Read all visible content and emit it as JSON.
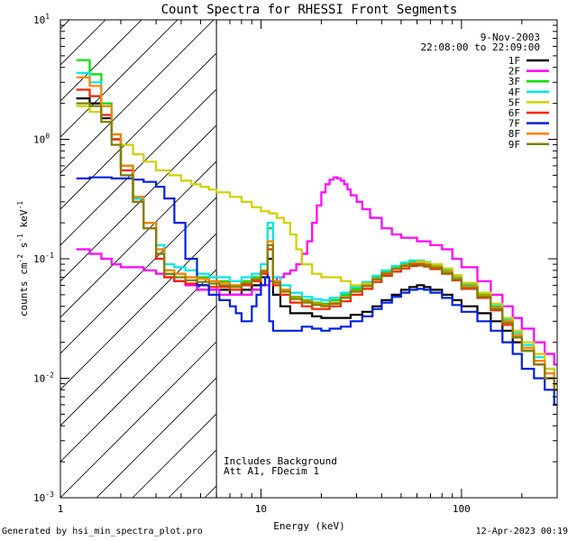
{
  "chart_data": {
    "type": "line",
    "title": "Count Spectra for RHESSI Front Segments",
    "xlabel": "Energy (keV)",
    "ylabel": "counts cm-2 s-1 keV-1",
    "xscale": "log",
    "yscale": "log",
    "xlim": [
      1.0,
      300.0
    ],
    "ylim": [
      0.001,
      10.0
    ],
    "x_tick_labels": [
      {
        "value": 1,
        "label": "1"
      },
      {
        "value": 10,
        "label": "10"
      },
      {
        "value": 100,
        "label": "100"
      }
    ],
    "y_tick_labels": [
      {
        "value": 0.001,
        "base": "10",
        "exp": "-3"
      },
      {
        "value": 0.01,
        "base": "10",
        "exp": "-2"
      },
      {
        "value": 0.1,
        "base": "10",
        "exp": "-1"
      },
      {
        "value": 1,
        "base": "10",
        "exp": "0"
      },
      {
        "value": 10,
        "base": "10",
        "exp": "1"
      }
    ],
    "date": "9-Nov-2003",
    "time_range": "22:08:00 to 22:09:00",
    "annotations": [
      "Includes Background",
      "Att A1, FDecim 1"
    ],
    "excluded_region": {
      "x_min": 1.0,
      "x_max": 6.0,
      "style": "hatched"
    },
    "series": [
      {
        "name": "1F",
        "color": "#000000",
        "x": [
          1.2,
          1.4,
          1.6,
          1.8,
          2.0,
          2.3,
          2.6,
          3.0,
          3.3,
          3.7,
          4.2,
          4.8,
          5.5,
          6.2,
          7.0,
          8.0,
          9.0,
          10.0,
          10.8,
          11.5,
          12.5,
          14,
          16,
          18,
          20,
          22,
          25,
          28,
          32,
          36,
          40,
          45,
          50,
          55,
          60,
          65,
          70,
          80,
          90,
          100,
          120,
          140,
          160,
          180,
          200,
          230,
          260,
          290
        ],
        "y": [
          2.2,
          2.0,
          1.5,
          1.0,
          0.6,
          0.32,
          0.2,
          0.11,
          0.075,
          0.065,
          0.06,
          0.06,
          0.055,
          0.055,
          0.05,
          0.055,
          0.06,
          0.07,
          0.1,
          0.05,
          0.04,
          0.035,
          0.035,
          0.033,
          0.032,
          0.032,
          0.032,
          0.034,
          0.036,
          0.04,
          0.045,
          0.05,
          0.055,
          0.058,
          0.06,
          0.058,
          0.055,
          0.05,
          0.045,
          0.04,
          0.035,
          0.03,
          0.025,
          0.02,
          0.017,
          0.013,
          0.01,
          0.008
        ]
      },
      {
        "name": "2F",
        "color": "#ff00ff",
        "x": [
          1.2,
          1.4,
          1.6,
          1.8,
          2.0,
          2.3,
          2.6,
          3.0,
          3.3,
          3.7,
          4.2,
          4.8,
          5.5,
          6.2,
          7.0,
          8.0,
          9.0,
          10.0,
          11.0,
          12.0,
          13.0,
          14,
          15,
          16,
          17,
          18,
          19,
          20,
          21,
          22,
          23,
          24,
          25,
          26,
          27,
          28,
          30,
          32,
          35,
          40,
          45,
          50,
          60,
          70,
          80,
          90,
          100,
          120,
          140,
          160,
          180,
          200,
          230,
          260,
          290
        ],
        "y": [
          0.12,
          0.11,
          0.1,
          0.09,
          0.085,
          0.085,
          0.08,
          0.075,
          0.07,
          0.065,
          0.06,
          0.055,
          0.055,
          0.05,
          0.05,
          0.05,
          0.055,
          0.06,
          0.065,
          0.07,
          0.075,
          0.08,
          0.09,
          0.11,
          0.14,
          0.2,
          0.28,
          0.36,
          0.42,
          0.46,
          0.48,
          0.47,
          0.45,
          0.42,
          0.38,
          0.34,
          0.3,
          0.26,
          0.22,
          0.18,
          0.16,
          0.15,
          0.14,
          0.13,
          0.12,
          0.1,
          0.085,
          0.065,
          0.05,
          0.04,
          0.032,
          0.026,
          0.02,
          0.016,
          0.013
        ]
      },
      {
        "name": "3F",
        "color": "#00e000",
        "x": [
          1.2,
          1.4,
          1.6,
          1.8,
          2.0,
          2.3,
          2.6,
          3.0,
          3.3,
          3.7,
          4.2,
          4.8,
          5.5,
          6.2,
          7.0,
          8.0,
          9.0,
          10.0,
          10.8,
          11.5,
          12.5,
          14,
          16,
          18,
          20,
          22,
          25,
          28,
          32,
          36,
          40,
          45,
          50,
          55,
          60,
          65,
          70,
          80,
          90,
          100,
          120,
          140,
          160,
          180,
          200,
          230,
          260,
          290
        ],
        "y": [
          4.6,
          3.5,
          2.0,
          1.1,
          0.6,
          0.33,
          0.2,
          0.12,
          0.08,
          0.075,
          0.07,
          0.07,
          0.065,
          0.065,
          0.06,
          0.065,
          0.07,
          0.08,
          0.18,
          0.065,
          0.055,
          0.048,
          0.045,
          0.043,
          0.042,
          0.045,
          0.05,
          0.056,
          0.062,
          0.07,
          0.078,
          0.085,
          0.09,
          0.095,
          0.095,
          0.092,
          0.088,
          0.08,
          0.07,
          0.06,
          0.05,
          0.04,
          0.03,
          0.023,
          0.018,
          0.014,
          0.011,
          0.009
        ]
      },
      {
        "name": "4F",
        "color": "#00e8e8",
        "x": [
          1.2,
          1.4,
          1.6,
          1.8,
          2.0,
          2.3,
          2.6,
          3.0,
          3.3,
          3.7,
          4.2,
          4.8,
          5.5,
          6.2,
          7.0,
          8.0,
          9.0,
          10.0,
          10.8,
          11.5,
          12.5,
          14,
          16,
          18,
          20,
          22,
          25,
          28,
          32,
          36,
          40,
          45,
          50,
          55,
          60,
          65,
          70,
          80,
          90,
          100,
          120,
          140,
          160,
          180,
          200,
          230,
          260,
          290
        ],
        "y": [
          3.6,
          3.0,
          1.9,
          1.0,
          0.6,
          0.32,
          0.2,
          0.13,
          0.09,
          0.085,
          0.08,
          0.075,
          0.07,
          0.07,
          0.065,
          0.07,
          0.075,
          0.09,
          0.2,
          0.07,
          0.06,
          0.052,
          0.048,
          0.046,
          0.045,
          0.047,
          0.052,
          0.058,
          0.064,
          0.072,
          0.08,
          0.087,
          0.093,
          0.097,
          0.097,
          0.094,
          0.09,
          0.082,
          0.072,
          0.062,
          0.052,
          0.041,
          0.031,
          0.024,
          0.019,
          0.015,
          0.012,
          0.009
        ]
      },
      {
        "name": "5F",
        "color": "#d0d000",
        "x": [
          1.2,
          1.4,
          1.6,
          1.8,
          2.0,
          2.3,
          2.6,
          3.0,
          3.5,
          4.0,
          4.5,
          5.0,
          5.5,
          6.0,
          7.0,
          8.0,
          9.0,
          10.0,
          11.0,
          12.0,
          13.0,
          14,
          15,
          16,
          18,
          20,
          22,
          25,
          28,
          32,
          36,
          40,
          45,
          50,
          55,
          60,
          65,
          70,
          80,
          90,
          100,
          120,
          140,
          160,
          180,
          200,
          230,
          260,
          290
        ],
        "y": [
          1.9,
          1.7,
          1.4,
          1.1,
          0.9,
          0.75,
          0.65,
          0.55,
          0.5,
          0.45,
          0.42,
          0.4,
          0.38,
          0.36,
          0.33,
          0.3,
          0.27,
          0.25,
          0.24,
          0.22,
          0.2,
          0.16,
          0.12,
          0.09,
          0.075,
          0.07,
          0.07,
          0.065,
          0.06,
          0.062,
          0.068,
          0.075,
          0.082,
          0.088,
          0.092,
          0.095,
          0.093,
          0.09,
          0.083,
          0.073,
          0.063,
          0.052,
          0.042,
          0.032,
          0.025,
          0.02,
          0.016,
          0.012,
          0.009
        ]
      },
      {
        "name": "6F",
        "color": "#ff2000",
        "x": [
          1.2,
          1.4,
          1.6,
          1.8,
          2.0,
          2.3,
          2.6,
          3.0,
          3.3,
          3.7,
          4.2,
          4.8,
          5.5,
          6.2,
          7.0,
          8.0,
          9.0,
          10.0,
          10.8,
          11.5,
          12.5,
          14,
          16,
          18,
          20,
          22,
          25,
          28,
          32,
          36,
          40,
          45,
          50,
          55,
          60,
          65,
          70,
          80,
          90,
          100,
          120,
          140,
          160,
          180,
          200,
          230,
          260,
          290
        ],
        "y": [
          2.6,
          2.3,
          1.6,
          1.0,
          0.55,
          0.3,
          0.18,
          0.1,
          0.07,
          0.065,
          0.062,
          0.06,
          0.058,
          0.058,
          0.055,
          0.06,
          0.065,
          0.075,
          0.12,
          0.06,
          0.05,
          0.043,
          0.04,
          0.038,
          0.038,
          0.04,
          0.044,
          0.05,
          0.056,
          0.064,
          0.072,
          0.078,
          0.083,
          0.087,
          0.088,
          0.086,
          0.082,
          0.075,
          0.066,
          0.056,
          0.047,
          0.037,
          0.028,
          0.022,
          0.017,
          0.013,
          0.01,
          0.008
        ]
      },
      {
        "name": "7F",
        "color": "#0020e0",
        "x": [
          1.2,
          1.4,
          1.6,
          1.8,
          2.0,
          2.3,
          2.6,
          3.0,
          3.3,
          3.7,
          4.2,
          4.8,
          5.5,
          6.2,
          7.0,
          7.5,
          8.0,
          8.5,
          9.0,
          9.5,
          10.0,
          10.5,
          11.0,
          11.5,
          12.0,
          13,
          14,
          16,
          18,
          20,
          22,
          25,
          28,
          32,
          36,
          40,
          45,
          50,
          55,
          60,
          65,
          70,
          80,
          90,
          100,
          120,
          140,
          160,
          180,
          200,
          230,
          260,
          290
        ],
        "y": [
          0.47,
          0.48,
          0.48,
          0.47,
          0.47,
          0.46,
          0.44,
          0.4,
          0.32,
          0.2,
          0.1,
          0.06,
          0.05,
          0.045,
          0.04,
          0.035,
          0.03,
          0.03,
          0.04,
          0.05,
          0.06,
          0.07,
          0.03,
          0.025,
          0.025,
          0.025,
          0.025,
          0.027,
          0.026,
          0.025,
          0.026,
          0.027,
          0.03,
          0.033,
          0.038,
          0.043,
          0.048,
          0.052,
          0.055,
          0.056,
          0.055,
          0.052,
          0.047,
          0.041,
          0.036,
          0.03,
          0.025,
          0.02,
          0.016,
          0.012,
          0.01,
          0.008,
          0.006
        ]
      },
      {
        "name": "8F",
        "color": "#ff8000",
        "x": [
          1.2,
          1.4,
          1.6,
          1.8,
          2.0,
          2.3,
          2.6,
          3.0,
          3.3,
          3.7,
          4.2,
          4.8,
          5.5,
          6.2,
          7.0,
          8.0,
          9.0,
          10.0,
          10.8,
          11.5,
          12.5,
          14,
          16,
          18,
          20,
          22,
          25,
          28,
          32,
          36,
          40,
          45,
          50,
          55,
          60,
          65,
          70,
          80,
          90,
          100,
          120,
          140,
          160,
          180,
          200,
          230,
          260,
          290
        ],
        "y": [
          3.3,
          2.8,
          1.9,
          1.1,
          0.6,
          0.33,
          0.2,
          0.12,
          0.08,
          0.075,
          0.07,
          0.068,
          0.065,
          0.063,
          0.06,
          0.063,
          0.068,
          0.08,
          0.14,
          0.065,
          0.055,
          0.047,
          0.044,
          0.042,
          0.041,
          0.043,
          0.048,
          0.054,
          0.06,
          0.068,
          0.076,
          0.083,
          0.088,
          0.092,
          0.092,
          0.09,
          0.086,
          0.078,
          0.069,
          0.059,
          0.049,
          0.039,
          0.03,
          0.023,
          0.018,
          0.014,
          0.011,
          0.009
        ]
      },
      {
        "name": "9F",
        "color": "#808000",
        "x": [
          1.2,
          1.4,
          1.6,
          1.8,
          2.0,
          2.3,
          2.6,
          3.0,
          3.3,
          3.7,
          4.2,
          4.8,
          5.5,
          6.2,
          7.0,
          8.0,
          9.0,
          10.0,
          10.8,
          11.5,
          12.5,
          14,
          16,
          18,
          20,
          22,
          25,
          28,
          32,
          36,
          40,
          45,
          50,
          55,
          60,
          65,
          70,
          80,
          90,
          100,
          120,
          140,
          160,
          180,
          200,
          230,
          260,
          290
        ],
        "y": [
          2.0,
          1.9,
          1.4,
          0.9,
          0.5,
          0.3,
          0.18,
          0.11,
          0.075,
          0.07,
          0.066,
          0.064,
          0.062,
          0.06,
          0.058,
          0.062,
          0.067,
          0.078,
          0.13,
          0.063,
          0.053,
          0.046,
          0.043,
          0.041,
          0.04,
          0.042,
          0.047,
          0.053,
          0.059,
          0.067,
          0.075,
          0.082,
          0.087,
          0.09,
          0.09,
          0.088,
          0.084,
          0.076,
          0.067,
          0.057,
          0.048,
          0.038,
          0.029,
          0.022,
          0.017,
          0.013,
          0.01,
          0.008
        ]
      }
    ]
  },
  "footer": {
    "generated_by": "Generated by hsi_min_spectra_plot.pro",
    "timestamp": "12-Apr-2023 00:19"
  }
}
